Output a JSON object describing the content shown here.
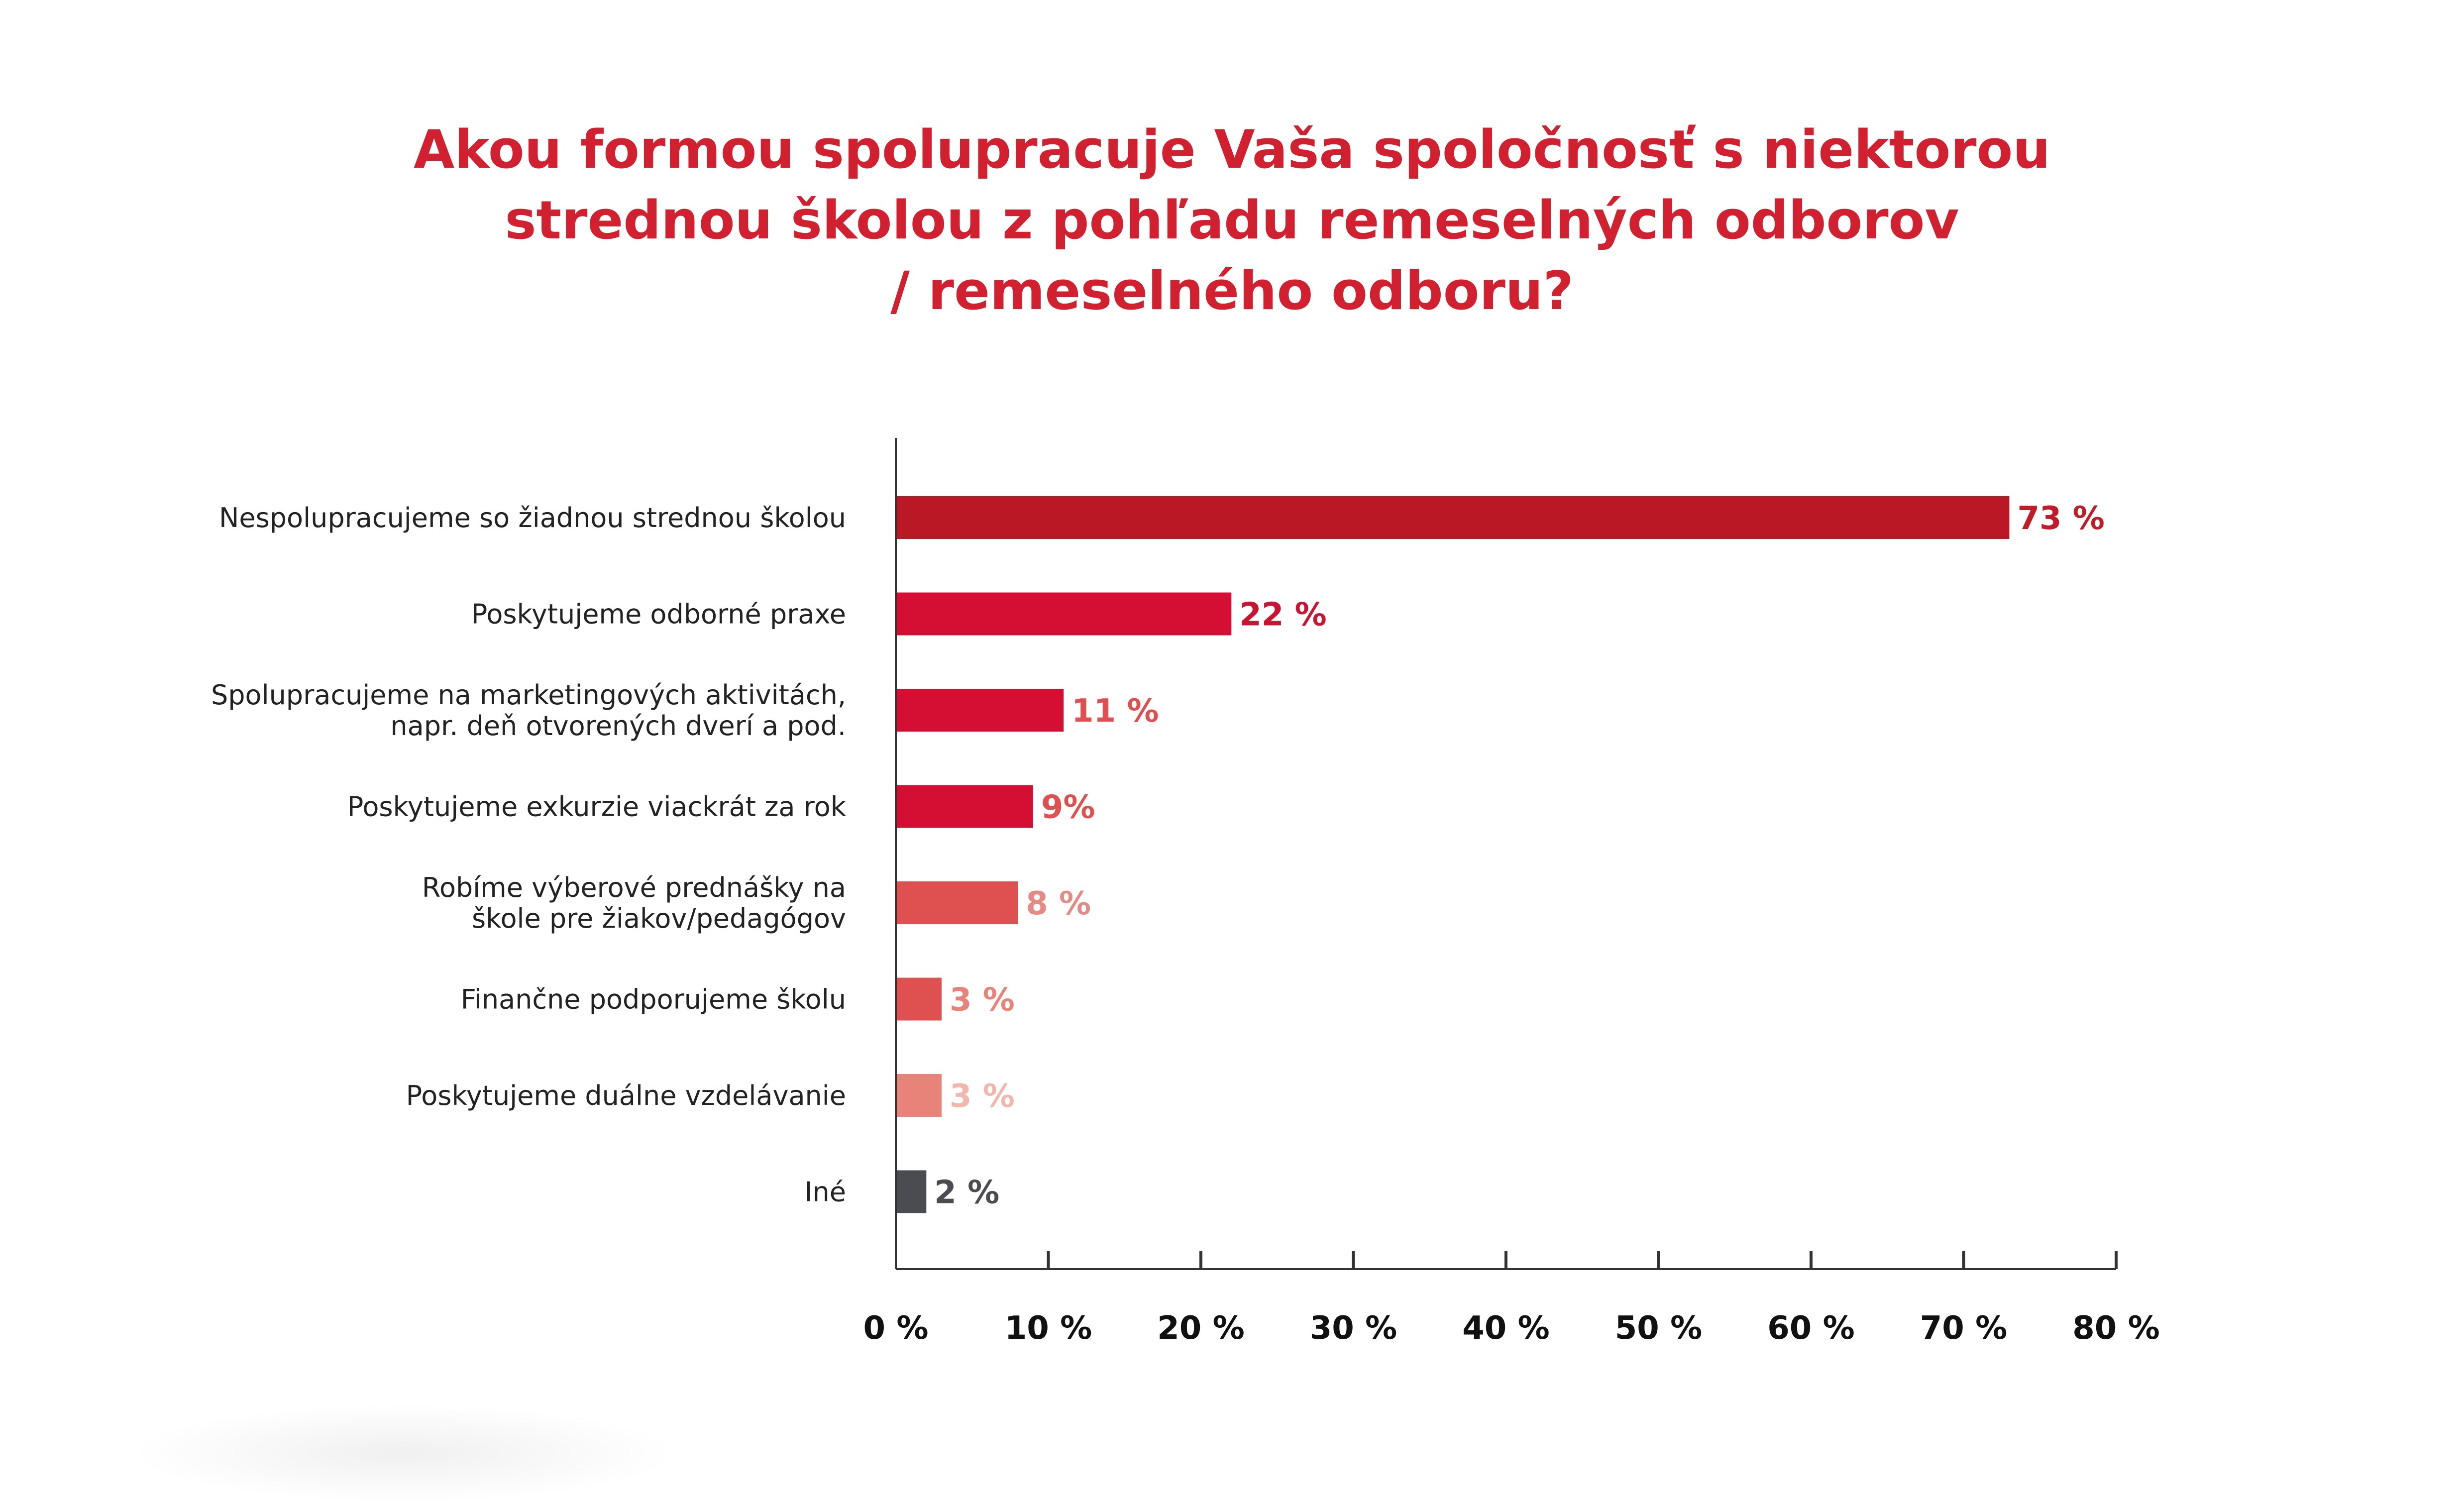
{
  "chart_data": {
    "type": "bar",
    "orientation": "horizontal",
    "title": [
      "Akou formou spolupracuje Vaša spoločnosť s niektorou",
      "strednou školou z pohľadu remeselných odborov",
      "/ remeselného odboru?"
    ],
    "categories": [
      [
        "Nespolupracujeme so žiadnou strednou školou"
      ],
      [
        "Poskytujeme odborné praxe"
      ],
      [
        "Spolupracujeme na marketingových aktivitách,",
        "napr. deň otvorených dverí a pod."
      ],
      [
        "Poskytujeme exkurzie viackrát za rok"
      ],
      [
        "Robíme výberové prednášky na",
        "škole pre žiakov/pedagógov"
      ],
      [
        "Finančne podporujeme školu"
      ],
      [
        "Poskytujeme duálne vzdelávanie"
      ],
      [
        "Iné"
      ]
    ],
    "values": [
      73,
      22,
      11,
      9,
      8,
      3,
      3,
      2
    ],
    "value_labels": [
      "73 %",
      "22 %",
      "11 %",
      "9%",
      "8 %",
      "3 %",
      "3 %",
      "2 %"
    ],
    "bar_colors": [
      "#bb1826",
      "#d40f33",
      "#d40f33",
      "#d40f33",
      "#df5151",
      "#df5151",
      "#e8837a",
      "#4b4c52"
    ],
    "label_colors": [
      "#c01d2b",
      "#c91432",
      "#df5151",
      "#df5151",
      "#e58a84",
      "#e8837a",
      "#f2b6ad",
      "#4b4c52"
    ],
    "xlim": [
      0,
      80
    ],
    "xticks": [
      0,
      10,
      20,
      30,
      40,
      50,
      60,
      70,
      80
    ],
    "xtick_labels": [
      "0 %",
      "10 %",
      "20 %",
      "30 %",
      "40 %",
      "50 %",
      "60 %",
      "70 %",
      "80 %"
    ],
    "xlabel": "",
    "ylabel": "",
    "grid": false
  },
  "colors": {
    "title": "#d1202f",
    "axis": "#333333"
  }
}
